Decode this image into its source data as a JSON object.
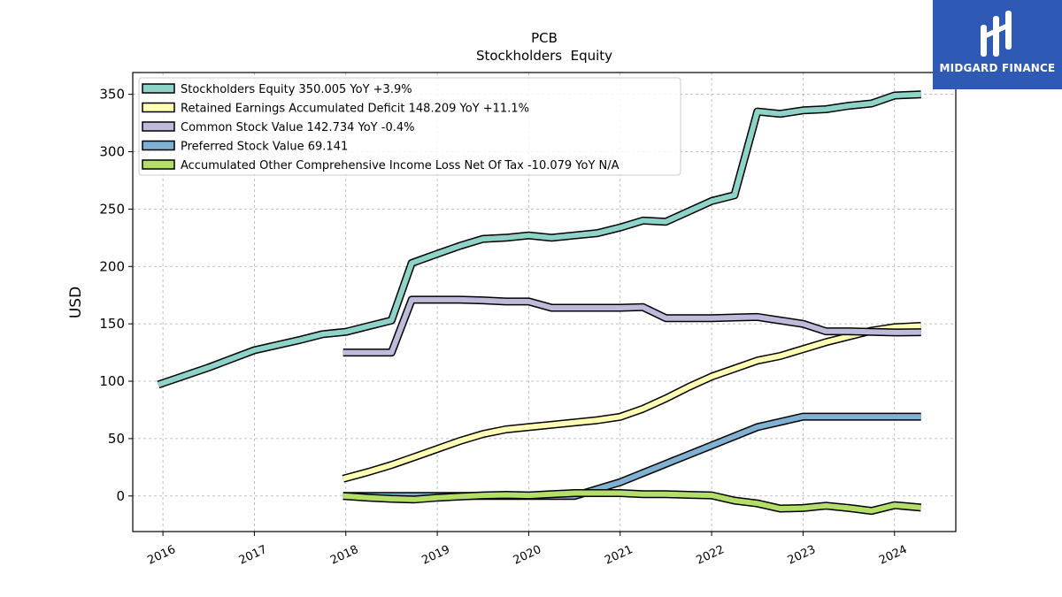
{
  "chart_data": {
    "type": "line",
    "title": "PCB",
    "subtitle": "Stockholders  Equity",
    "xlabel": "",
    "ylabel": "USD",
    "xlim": [
      2015.67,
      2024.67
    ],
    "ylim": [
      -31,
      369
    ],
    "yticks": [
      0,
      50,
      100,
      150,
      200,
      250,
      300,
      350
    ],
    "xticks": [
      2016,
      2017,
      2018,
      2019,
      2020,
      2021,
      2022,
      2023,
      2024
    ],
    "grid": true,
    "legend_position": "top-left",
    "series": [
      {
        "name": "Stockholders Equity  350.005 YoY +3.9%",
        "color": "#8dd3c7",
        "points": [
          [
            2015.95,
            97
          ],
          [
            2016.5,
            112
          ],
          [
            2017.0,
            127
          ],
          [
            2017.5,
            136
          ],
          [
            2017.75,
            141
          ],
          [
            2018.0,
            143
          ],
          [
            2018.25,
            148
          ],
          [
            2018.5,
            153
          ],
          [
            2018.72,
            203
          ],
          [
            2019.0,
            211
          ],
          [
            2019.25,
            218
          ],
          [
            2019.5,
            224
          ],
          [
            2019.75,
            225
          ],
          [
            2020.0,
            227
          ],
          [
            2020.25,
            225
          ],
          [
            2020.5,
            227
          ],
          [
            2020.75,
            229
          ],
          [
            2021.0,
            234
          ],
          [
            2021.25,
            240
          ],
          [
            2021.5,
            239
          ],
          [
            2021.75,
            248
          ],
          [
            2022.0,
            257
          ],
          [
            2022.25,
            262
          ],
          [
            2022.5,
            335
          ],
          [
            2022.75,
            333
          ],
          [
            2023.0,
            336
          ],
          [
            2023.25,
            337
          ],
          [
            2023.5,
            340
          ],
          [
            2023.75,
            342
          ],
          [
            2024.0,
            349
          ],
          [
            2024.29,
            350
          ]
        ]
      },
      {
        "name": "Retained Earnings Accumulated Deficit  148.209 YoY +11.1%",
        "color": "#ffffb3",
        "points": [
          [
            2017.97,
            15
          ],
          [
            2018.25,
            21
          ],
          [
            2018.5,
            27
          ],
          [
            2018.75,
            34
          ],
          [
            2019.0,
            41
          ],
          [
            2019.25,
            48
          ],
          [
            2019.5,
            54
          ],
          [
            2019.75,
            58
          ],
          [
            2020.0,
            60
          ],
          [
            2020.25,
            62
          ],
          [
            2020.5,
            64
          ],
          [
            2020.75,
            66
          ],
          [
            2021.0,
            69
          ],
          [
            2021.25,
            76
          ],
          [
            2021.5,
            85
          ],
          [
            2021.75,
            95
          ],
          [
            2022.0,
            104
          ],
          [
            2022.25,
            111
          ],
          [
            2022.5,
            118
          ],
          [
            2022.75,
            122
          ],
          [
            2023.0,
            128
          ],
          [
            2023.25,
            134
          ],
          [
            2023.5,
            139
          ],
          [
            2023.75,
            144
          ],
          [
            2024.0,
            147
          ],
          [
            2024.29,
            148.209
          ]
        ]
      },
      {
        "name": "Common Stock Value  142.734 YoY -0.4%",
        "color": "#bebada",
        "points": [
          [
            2017.97,
            125
          ],
          [
            2018.25,
            125
          ],
          [
            2018.5,
            125
          ],
          [
            2018.72,
            171
          ],
          [
            2019.0,
            171
          ],
          [
            2019.25,
            171
          ],
          [
            2019.5,
            170.5
          ],
          [
            2019.75,
            169.5
          ],
          [
            2020.0,
            169.5
          ],
          [
            2020.25,
            164
          ],
          [
            2020.5,
            164
          ],
          [
            2020.75,
            164
          ],
          [
            2021.0,
            164
          ],
          [
            2021.25,
            164.5
          ],
          [
            2021.5,
            155
          ],
          [
            2021.75,
            155
          ],
          [
            2022.0,
            155
          ],
          [
            2022.25,
            155.5
          ],
          [
            2022.5,
            156
          ],
          [
            2022.75,
            153
          ],
          [
            2023.0,
            150
          ],
          [
            2023.25,
            143.5
          ],
          [
            2023.5,
            143.5
          ],
          [
            2023.75,
            143
          ],
          [
            2024.0,
            142.5
          ],
          [
            2024.29,
            142.734
          ]
        ]
      },
      {
        "name": "Preferred Stock Value  69.141",
        "color": "#80b1d3",
        "points": [
          [
            2017.97,
            0
          ],
          [
            2018.5,
            0
          ],
          [
            2019.0,
            0
          ],
          [
            2019.5,
            0
          ],
          [
            2020.0,
            0
          ],
          [
            2020.5,
            0
          ],
          [
            2021.0,
            12
          ],
          [
            2021.5,
            28
          ],
          [
            2022.0,
            44
          ],
          [
            2022.5,
            60
          ],
          [
            2023.0,
            69.141
          ],
          [
            2023.5,
            69.141
          ],
          [
            2024.0,
            69.141
          ],
          [
            2024.29,
            69.141
          ]
        ]
      },
      {
        "name": "Accumulated Other Comprehensive Income Loss Net Of Tax  -10.079 YoY N/A",
        "color": "#b3de69",
        "points": [
          [
            2017.97,
            0
          ],
          [
            2018.25,
            -1.5
          ],
          [
            2018.5,
            -2.5
          ],
          [
            2018.75,
            -3
          ],
          [
            2019.0,
            -1.5
          ],
          [
            2019.25,
            -0.5
          ],
          [
            2019.5,
            0.5
          ],
          [
            2019.75,
            1
          ],
          [
            2020.0,
            0.5
          ],
          [
            2020.25,
            1.5
          ],
          [
            2020.5,
            2.5
          ],
          [
            2020.75,
            2.5
          ],
          [
            2021.0,
            2.5
          ],
          [
            2021.25,
            1.5
          ],
          [
            2021.5,
            1.5
          ],
          [
            2021.75,
            1
          ],
          [
            2022.0,
            0.5
          ],
          [
            2022.25,
            -4
          ],
          [
            2022.5,
            -6.5
          ],
          [
            2022.75,
            -11
          ],
          [
            2023.0,
            -10.5
          ],
          [
            2023.25,
            -8.5
          ],
          [
            2023.5,
            -10.5
          ],
          [
            2023.75,
            -13
          ],
          [
            2024.0,
            -8
          ],
          [
            2024.29,
            -10.079
          ]
        ]
      }
    ]
  },
  "logo": {
    "text": "MIDGARD FINANCE",
    "bg_color": "#2e5ab5"
  }
}
